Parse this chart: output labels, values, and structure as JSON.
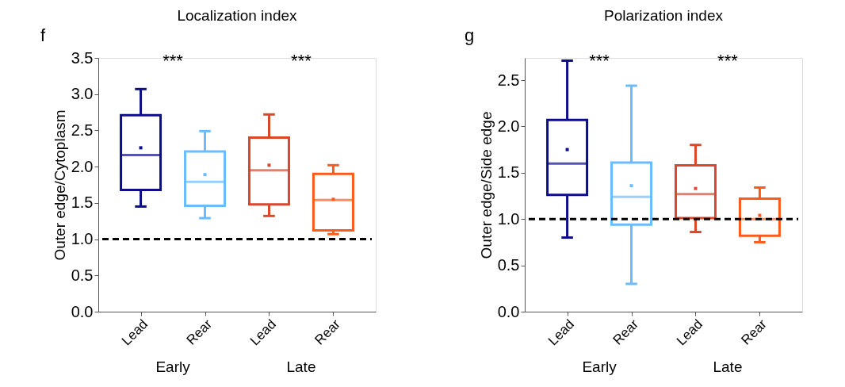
{
  "chart_data": [
    {
      "type": "box",
      "title": "Localization index",
      "ylabel": "Outer edge/Cytoplasm",
      "categories": [
        "Lead",
        "Rear",
        "Lead",
        "Rear"
      ],
      "colors": [
        "#0d0d8c",
        "#6bbcff",
        "#d9482b",
        "#ff5a1a"
      ],
      "boxes": [
        {
          "low": 1.45,
          "q1": 1.68,
          "median": 2.16,
          "q3": 2.71,
          "high": 3.07,
          "mean": 2.26
        },
        {
          "low": 1.29,
          "q1": 1.46,
          "median": 1.79,
          "q3": 2.21,
          "high": 2.49,
          "mean": 1.89
        },
        {
          "low": 1.32,
          "q1": 1.48,
          "median": 1.95,
          "q3": 2.4,
          "high": 2.72,
          "mean": 2.02
        },
        {
          "low": 1.07,
          "q1": 1.12,
          "median": 1.54,
          "q3": 1.9,
          "high": 2.02,
          "mean": 1.55
        }
      ],
      "ylim": [
        0,
        3.5
      ],
      "yticks": [
        {
          "value": 0,
          "label": "0.0"
        },
        0.5,
        {
          "value": 1,
          "label": "1.0"
        },
        1.5,
        {
          "value": 2,
          "label": "2.0"
        },
        2.5,
        {
          "value": 3,
          "label": "3.0"
        },
        3.5
      ],
      "ref_lines": [
        {
          "axis": "y",
          "value": 1.0,
          "color": "#000000",
          "line_style": "dashed"
        }
      ],
      "annotations": [
        "f",
        "***",
        "***",
        "Early",
        "Late"
      ],
      "grid": false
    },
    {
      "type": "box",
      "title": "Polarization index",
      "ylabel": "Outer edge/Side edge",
      "categories": [
        "Lead",
        "Rear",
        "Lead",
        "Rear"
      ],
      "colors": [
        "#0d0d8c",
        "#6bbcff",
        "#d9482b",
        "#ff5a1a"
      ],
      "boxes": [
        {
          "low": 0.8,
          "q1": 1.26,
          "median": 1.6,
          "q3": 2.07,
          "high": 2.71,
          "mean": 1.75
        },
        {
          "low": 0.3,
          "q1": 0.94,
          "median": 1.24,
          "q3": 1.61,
          "high": 2.44,
          "mean": 1.36
        },
        {
          "low": 0.86,
          "q1": 1.01,
          "median": 1.27,
          "q3": 1.58,
          "high": 1.8,
          "mean": 1.33
        },
        {
          "low": 0.75,
          "q1": 0.82,
          "median": 1.0,
          "q3": 1.22,
          "high": 1.34,
          "mean": 1.04
        }
      ],
      "ylim": [
        0,
        2.74
      ],
      "yticks": [
        {
          "value": 0,
          "label": "0.0"
        },
        0.5,
        {
          "value": 1,
          "label": "1.0"
        },
        1.5,
        {
          "value": 2,
          "label": "2.0"
        },
        2.5
      ],
      "ref_lines": [
        {
          "axis": "y",
          "value": 1.0,
          "color": "#000000",
          "line_style": "dashed"
        }
      ],
      "annotations": [
        "g",
        "***",
        "***",
        "Early",
        "Late"
      ],
      "grid": false
    }
  ]
}
